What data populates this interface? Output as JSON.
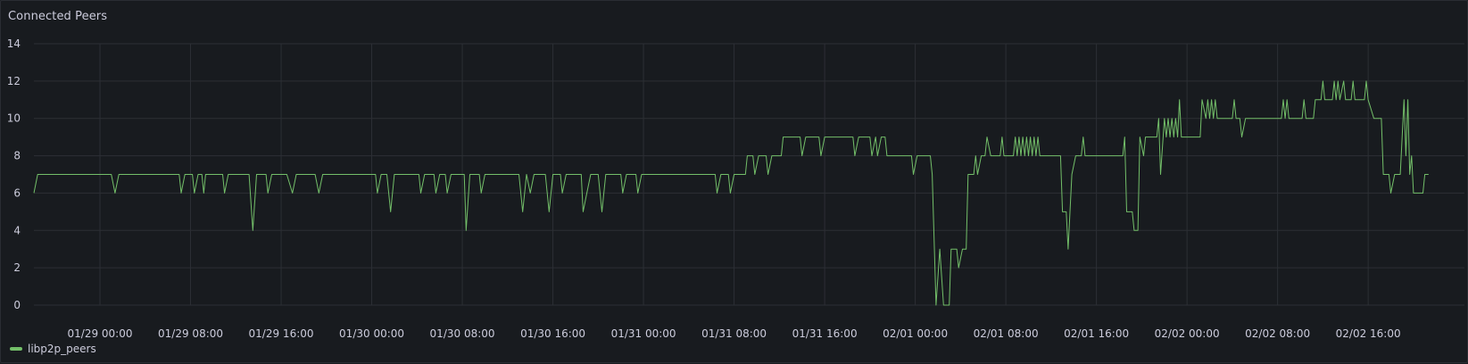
{
  "panel": {
    "title": "Connected Peers"
  },
  "colors": {
    "series": "#73bf69",
    "grid": "#2c2f35",
    "background": "#181b1f"
  },
  "chart_data": {
    "type": "line",
    "title": "Connected Peers",
    "xlabel": "",
    "ylabel": "",
    "ylim": [
      0,
      14
    ],
    "yticks": [
      0,
      2,
      4,
      6,
      8,
      10,
      12,
      14
    ],
    "xlim": [
      "01/28 18:10",
      "02/03 00:30"
    ],
    "xticks": [
      "01/29 00:00",
      "01/29 08:00",
      "01/29 16:00",
      "01/30 00:00",
      "01/30 08:00",
      "01/30 16:00",
      "01/31 00:00",
      "01/31 08:00",
      "01/31 16:00",
      "02/01 00:00",
      "02/01 08:00",
      "02/01 16:00",
      "02/02 00:00",
      "02/02 08:00",
      "02/02 16:00"
    ],
    "grid": true,
    "legend_position": "bottom-left",
    "series": [
      {
        "name": "libp2p_peers",
        "color": "#73bf69",
        "points": [
          [
            "01/28 18:10",
            6
          ],
          [
            "01/28 18:30",
            7
          ],
          [
            "01/29 00:00",
            7
          ],
          [
            "01/29 01:00",
            7
          ],
          [
            "01/29 01:20",
            6
          ],
          [
            "01/29 01:40",
            7
          ],
          [
            "01/29 03:00",
            7
          ],
          [
            "01/29 03:20",
            7
          ],
          [
            "01/29 07:00",
            7
          ],
          [
            "01/29 07:10",
            6
          ],
          [
            "01/29 07:30",
            7
          ],
          [
            "01/29 08:10",
            7
          ],
          [
            "01/29 08:20",
            6
          ],
          [
            "01/29 08:40",
            7
          ],
          [
            "01/29 09:00",
            7
          ],
          [
            "01/29 09:10",
            6
          ],
          [
            "01/29 09:20",
            7
          ],
          [
            "01/29 10:50",
            7
          ],
          [
            "01/29 11:00",
            6
          ],
          [
            "01/29 11:20",
            7
          ],
          [
            "01/29 13:10",
            7
          ],
          [
            "01/29 13:30",
            4
          ],
          [
            "01/29 13:50",
            7
          ],
          [
            "01/29 14:40",
            7
          ],
          [
            "01/29 14:50",
            6
          ],
          [
            "01/29 15:10",
            7
          ],
          [
            "01/29 16:00",
            7
          ],
          [
            "01/29 16:30",
            7
          ],
          [
            "01/29 17:00",
            6
          ],
          [
            "01/29 17:20",
            7
          ],
          [
            "01/29 19:00",
            7
          ],
          [
            "01/29 19:20",
            6
          ],
          [
            "01/29 19:40",
            7
          ],
          [
            "01/29 23:20",
            7
          ],
          [
            "01/29 23:40",
            7
          ],
          [
            "01/30 00:20",
            7
          ],
          [
            "01/30 00:30",
            6
          ],
          [
            "01/30 00:50",
            7
          ],
          [
            "01/30 01:20",
            7
          ],
          [
            "01/30 01:40",
            5
          ],
          [
            "01/30 02:00",
            7
          ],
          [
            "01/30 04:10",
            7
          ],
          [
            "01/30 04:20",
            6
          ],
          [
            "01/30 04:40",
            7
          ],
          [
            "01/30 05:30",
            7
          ],
          [
            "01/30 05:40",
            6
          ],
          [
            "01/30 06:00",
            7
          ],
          [
            "01/30 06:30",
            7
          ],
          [
            "01/30 06:40",
            6
          ],
          [
            "01/30 07:00",
            7
          ],
          [
            "01/30 08:10",
            7
          ],
          [
            "01/30 08:20",
            4
          ],
          [
            "01/30 08:40",
            7
          ],
          [
            "01/30 09:30",
            7
          ],
          [
            "01/30 09:40",
            6
          ],
          [
            "01/30 10:00",
            7
          ],
          [
            "01/30 13:00",
            7
          ],
          [
            "01/30 13:20",
            5
          ],
          [
            "01/30 13:40",
            7
          ],
          [
            "01/30 14:00",
            6
          ],
          [
            "01/30 14:20",
            7
          ],
          [
            "01/30 15:20",
            7
          ],
          [
            "01/30 15:40",
            5
          ],
          [
            "01/30 16:00",
            7
          ],
          [
            "01/30 16:40",
            7
          ],
          [
            "01/30 16:50",
            6
          ],
          [
            "01/30 17:10",
            7
          ],
          [
            "01/30 18:30",
            7
          ],
          [
            "01/30 18:40",
            5
          ],
          [
            "01/30 19:00",
            6
          ],
          [
            "01/30 19:20",
            7
          ],
          [
            "01/30 20:00",
            7
          ],
          [
            "01/30 20:20",
            5
          ],
          [
            "01/30 20:40",
            7
          ],
          [
            "01/30 22:00",
            7
          ],
          [
            "01/30 22:10",
            6
          ],
          [
            "01/30 22:30",
            7
          ],
          [
            "01/30 23:20",
            7
          ],
          [
            "01/30 23:30",
            6
          ],
          [
            "01/30 23:50",
            7
          ],
          [
            "01/31 06:20",
            7
          ],
          [
            "01/31 06:30",
            6
          ],
          [
            "01/31 06:50",
            7
          ],
          [
            "01/31 07:30",
            7
          ],
          [
            "01/31 07:40",
            6
          ],
          [
            "01/31 08:00",
            7
          ],
          [
            "01/31 09:00",
            7
          ],
          [
            "01/31 09:10",
            8
          ],
          [
            "01/31 09:40",
            8
          ],
          [
            "01/31 09:50",
            7
          ],
          [
            "01/31 10:10",
            8
          ],
          [
            "01/31 10:50",
            8
          ],
          [
            "01/31 11:00",
            7
          ],
          [
            "01/31 11:20",
            8
          ],
          [
            "01/31 12:10",
            8
          ],
          [
            "01/31 12:20",
            9
          ],
          [
            "01/31 13:50",
            9
          ],
          [
            "01/31 14:00",
            8
          ],
          [
            "01/31 14:20",
            9
          ],
          [
            "01/31 15:30",
            9
          ],
          [
            "01/31 15:40",
            8
          ],
          [
            "01/31 16:00",
            9
          ],
          [
            "01/31 18:30",
            9
          ],
          [
            "01/31 18:40",
            8
          ],
          [
            "01/31 19:00",
            9
          ],
          [
            "01/31 20:00",
            9
          ],
          [
            "01/31 20:10",
            8
          ],
          [
            "01/31 20:30",
            9
          ],
          [
            "01/31 20:40",
            8
          ],
          [
            "01/31 21:00",
            9
          ],
          [
            "01/31 21:20",
            9
          ],
          [
            "01/31 21:30",
            8
          ],
          [
            "01/31 23:40",
            8
          ],
          [
            "01/31 23:50",
            7
          ],
          [
            "02/01 00:10",
            8
          ],
          [
            "02/01 01:20",
            8
          ],
          [
            "02/01 01:30",
            7
          ],
          [
            "02/01 01:50",
            0
          ],
          [
            "02/01 02:10",
            3
          ],
          [
            "02/01 02:30",
            0
          ],
          [
            "02/01 03:00",
            0
          ],
          [
            "02/01 03:10",
            3
          ],
          [
            "02/01 03:40",
            3
          ],
          [
            "02/01 03:50",
            2
          ],
          [
            "02/01 04:10",
            3
          ],
          [
            "02/01 04:30",
            3
          ],
          [
            "02/01 04:40",
            7
          ],
          [
            "02/01 05:10",
            7
          ],
          [
            "02/01 05:20",
            8
          ],
          [
            "02/01 05:30",
            7
          ],
          [
            "02/01 05:50",
            8
          ],
          [
            "02/01 06:10",
            8
          ],
          [
            "02/01 06:20",
            9
          ],
          [
            "02/01 06:40",
            8
          ],
          [
            "02/01 07:30",
            8
          ],
          [
            "02/01 07:40",
            9
          ],
          [
            "02/01 07:50",
            8
          ],
          [
            "02/01 08:40",
            8
          ],
          [
            "02/01 08:50",
            9
          ],
          [
            "02/01 09:00",
            8
          ],
          [
            "02/01 09:10",
            9
          ],
          [
            "02/01 09:20",
            8
          ],
          [
            "02/01 09:30",
            9
          ],
          [
            "02/01 09:40",
            8
          ],
          [
            "02/01 09:50",
            9
          ],
          [
            "02/01 10:00",
            8
          ],
          [
            "02/01 10:10",
            9
          ],
          [
            "02/01 10:20",
            8
          ],
          [
            "02/01 10:30",
            9
          ],
          [
            "02/01 10:40",
            8
          ],
          [
            "02/01 10:50",
            9
          ],
          [
            "02/01 11:00",
            8
          ],
          [
            "02/01 12:50",
            8
          ],
          [
            "02/01 13:00",
            5
          ],
          [
            "02/01 13:20",
            5
          ],
          [
            "02/01 13:30",
            3
          ],
          [
            "02/01 13:50",
            7
          ],
          [
            "02/01 14:10",
            8
          ],
          [
            "02/01 14:40",
            8
          ],
          [
            "02/01 14:50",
            9
          ],
          [
            "02/01 15:00",
            8
          ],
          [
            "02/01 18:20",
            8
          ],
          [
            "02/01 18:30",
            9
          ],
          [
            "02/01 18:40",
            5
          ],
          [
            "02/01 19:10",
            5
          ],
          [
            "02/01 19:20",
            4
          ],
          [
            "02/01 19:40",
            4
          ],
          [
            "02/01 19:50",
            9
          ],
          [
            "02/01 20:10",
            8
          ],
          [
            "02/01 20:20",
            9
          ],
          [
            "02/01 21:20",
            9
          ],
          [
            "02/01 21:30",
            10
          ],
          [
            "02/01 21:40",
            7
          ],
          [
            "02/01 22:00",
            10
          ],
          [
            "02/01 22:10",
            9
          ],
          [
            "02/01 22:20",
            10
          ],
          [
            "02/01 22:30",
            9
          ],
          [
            "02/01 22:40",
            10
          ],
          [
            "02/01 22:50",
            9
          ],
          [
            "02/01 23:00",
            10
          ],
          [
            "02/01 23:10",
            9
          ],
          [
            "02/01 23:20",
            11
          ],
          [
            "02/01 23:30",
            9
          ],
          [
            "02/02 01:10",
            9
          ],
          [
            "02/02 01:20",
            11
          ],
          [
            "02/02 01:40",
            10
          ],
          [
            "02/02 01:50",
            11
          ],
          [
            "02/02 02:00",
            10
          ],
          [
            "02/02 02:10",
            11
          ],
          [
            "02/02 02:20",
            10
          ],
          [
            "02/02 02:30",
            11
          ],
          [
            "02/02 02:40",
            10
          ],
          [
            "02/02 04:00",
            10
          ],
          [
            "02/02 04:10",
            11
          ],
          [
            "02/02 04:20",
            10
          ],
          [
            "02/02 04:40",
            10
          ],
          [
            "02/02 04:50",
            9
          ],
          [
            "02/02 05:10",
            10
          ],
          [
            "02/02 08:20",
            10
          ],
          [
            "02/02 08:30",
            11
          ],
          [
            "02/02 08:40",
            10
          ],
          [
            "02/02 08:50",
            11
          ],
          [
            "02/02 09:00",
            10
          ],
          [
            "02/02 10:10",
            10
          ],
          [
            "02/02 10:20",
            11
          ],
          [
            "02/02 10:30",
            10
          ],
          [
            "02/02 11:10",
            10
          ],
          [
            "02/02 11:20",
            11
          ],
          [
            "02/02 11:50",
            11
          ],
          [
            "02/02 12:00",
            12
          ],
          [
            "02/02 12:10",
            11
          ],
          [
            "02/02 12:50",
            11
          ],
          [
            "02/02 13:00",
            12
          ],
          [
            "02/02 13:10",
            11
          ],
          [
            "02/02 13:20",
            12
          ],
          [
            "02/02 13:30",
            11
          ],
          [
            "02/02 13:50",
            12
          ],
          [
            "02/02 14:00",
            11
          ],
          [
            "02/02 14:30",
            11
          ],
          [
            "02/02 14:40",
            12
          ],
          [
            "02/02 14:50",
            11
          ],
          [
            "02/02 15:40",
            11
          ],
          [
            "02/02 15:50",
            12
          ],
          [
            "02/02 16:00",
            11
          ],
          [
            "02/02 16:30",
            10
          ],
          [
            "02/02 17:10",
            10
          ],
          [
            "02/02 17:20",
            7
          ],
          [
            "02/02 17:50",
            7
          ],
          [
            "02/02 18:00",
            6
          ],
          [
            "02/02 18:20",
            7
          ],
          [
            "02/02 18:50",
            7
          ],
          [
            "02/02 19:00",
            9
          ],
          [
            "02/02 19:10",
            11
          ],
          [
            "02/02 19:20",
            8
          ],
          [
            "02/02 19:30",
            11
          ],
          [
            "02/02 19:40",
            7
          ],
          [
            "02/02 19:50",
            8
          ],
          [
            "02/02 20:00",
            6
          ],
          [
            "02/02 20:50",
            6
          ],
          [
            "02/02 21:00",
            7
          ],
          [
            "02/02 21:20",
            7
          ]
        ]
      }
    ]
  },
  "legend": {
    "items": [
      {
        "label": "libp2p_peers",
        "color": "#73bf69"
      }
    ]
  }
}
